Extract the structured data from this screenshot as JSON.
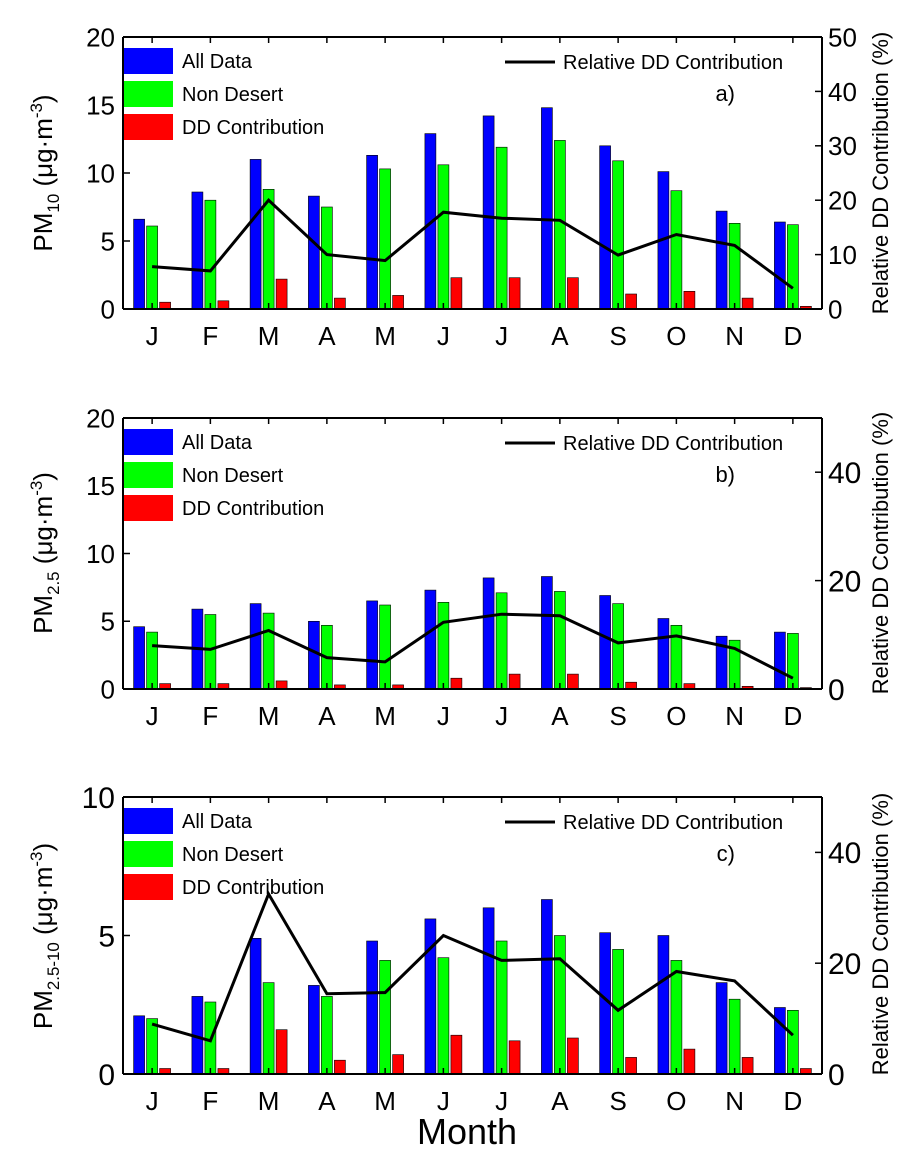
{
  "xlabel": "Month",
  "months": [
    "J",
    "F",
    "M",
    "A",
    "M",
    "J",
    "J",
    "A",
    "S",
    "O",
    "N",
    "D"
  ],
  "legend": {
    "all": "All Data",
    "non": "Non Desert",
    "dd": "DD Contribution",
    "rel": "Relative DD Contribution"
  },
  "colors": {
    "all": "#0000ff",
    "non": "#00ff00",
    "dd": "#ff0000",
    "rel": "#000000"
  },
  "chart_data": [
    {
      "type": "bar",
      "panel_label": "a)",
      "ylabel_main": "PM",
      "ylabel_sub": "10",
      "ylabel_unit": "(μg·m",
      "ylabel_sup": "-3",
      "y2label": "Relative DD Contribution (%)",
      "ylim": [
        0,
        20
      ],
      "yticks": [
        0,
        5,
        10,
        15,
        20
      ],
      "y2lim": [
        0,
        50
      ],
      "y2ticks": [
        0,
        10,
        20,
        30,
        40,
        50
      ],
      "categories": [
        "J",
        "F",
        "M",
        "A",
        "M",
        "J",
        "J",
        "A",
        "S",
        "O",
        "N",
        "D"
      ],
      "series": [
        {
          "name": "All Data",
          "values": [
            6.6,
            8.6,
            11.0,
            8.3,
            11.3,
            12.9,
            14.2,
            14.8,
            12.0,
            10.1,
            7.2,
            6.4
          ]
        },
        {
          "name": "Non Desert",
          "values": [
            6.1,
            8.0,
            8.8,
            7.5,
            10.3,
            10.6,
            11.9,
            12.4,
            10.9,
            8.7,
            6.3,
            6.2
          ]
        },
        {
          "name": "DD Contribution",
          "values": [
            0.5,
            0.6,
            2.2,
            0.8,
            1.0,
            2.3,
            2.3,
            2.3,
            1.1,
            1.3,
            0.8,
            0.2
          ]
        },
        {
          "name": "Relative DD Contribution",
          "axis": "right",
          "values": [
            7.8,
            7.0,
            20.0,
            10.0,
            8.9,
            17.8,
            16.7,
            16.3,
            9.9,
            13.7,
            11.7,
            3.8
          ]
        }
      ]
    },
    {
      "type": "bar",
      "panel_label": "b)",
      "ylabel_main": "PM",
      "ylabel_sub": "2.5",
      "ylabel_unit": "(μg·m",
      "ylabel_sup": "-3",
      "y2label": "Relative DD Contribution (%)",
      "ylim": [
        0,
        20
      ],
      "yticks": [
        0,
        5,
        10,
        15,
        20
      ],
      "y2lim": [
        0,
        50
      ],
      "y2ticks": [
        0,
        20,
        40
      ],
      "categories": [
        "J",
        "F",
        "M",
        "A",
        "M",
        "J",
        "J",
        "A",
        "S",
        "O",
        "N",
        "D"
      ],
      "series": [
        {
          "name": "All Data",
          "values": [
            4.6,
            5.9,
            6.3,
            5.0,
            6.5,
            7.3,
            8.2,
            8.3,
            6.9,
            5.2,
            3.9,
            4.2
          ]
        },
        {
          "name": "Non Desert",
          "values": [
            4.2,
            5.5,
            5.6,
            4.7,
            6.2,
            6.4,
            7.1,
            7.2,
            6.3,
            4.7,
            3.6,
            4.1
          ]
        },
        {
          "name": "DD Contribution",
          "values": [
            0.4,
            0.4,
            0.6,
            0.3,
            0.3,
            0.8,
            1.1,
            1.1,
            0.5,
            0.4,
            0.2,
            0.1
          ]
        },
        {
          "name": "Relative DD Contribution",
          "axis": "right",
          "values": [
            8.0,
            7.3,
            10.8,
            5.8,
            5.0,
            12.3,
            13.8,
            13.5,
            8.5,
            9.8,
            7.5,
            2.0
          ]
        }
      ]
    },
    {
      "type": "bar",
      "panel_label": "c)",
      "ylabel_main": "PM",
      "ylabel_sub": "2.5-10",
      "ylabel_unit": "(μg·m",
      "ylabel_sup": "-3",
      "y2label": "Relative DD Contribution (%)",
      "ylim": [
        0,
        10
      ],
      "yticks": [
        0,
        5,
        10
      ],
      "y2lim": [
        0,
        50
      ],
      "y2ticks": [
        0,
        20,
        40
      ],
      "categories": [
        "J",
        "F",
        "M",
        "A",
        "M",
        "J",
        "J",
        "A",
        "S",
        "O",
        "N",
        "D"
      ],
      "series": [
        {
          "name": "All Data",
          "values": [
            2.1,
            2.8,
            4.9,
            3.2,
            4.8,
            5.6,
            6.0,
            6.3,
            5.1,
            5.0,
            3.3,
            2.4
          ]
        },
        {
          "name": "Non Desert",
          "values": [
            2.0,
            2.6,
            3.3,
            2.8,
            4.1,
            4.2,
            4.8,
            5.0,
            4.5,
            4.1,
            2.7,
            2.3
          ]
        },
        {
          "name": "DD Contribution",
          "values": [
            0.2,
            0.2,
            1.6,
            0.5,
            0.7,
            1.4,
            1.2,
            1.3,
            0.6,
            0.9,
            0.6,
            0.2
          ]
        },
        {
          "name": "Relative DD Contribution",
          "axis": "right",
          "values": [
            9.0,
            6.0,
            32.5,
            14.5,
            14.7,
            25.0,
            20.5,
            20.8,
            11.5,
            18.5,
            16.8,
            7.0
          ]
        }
      ]
    }
  ]
}
